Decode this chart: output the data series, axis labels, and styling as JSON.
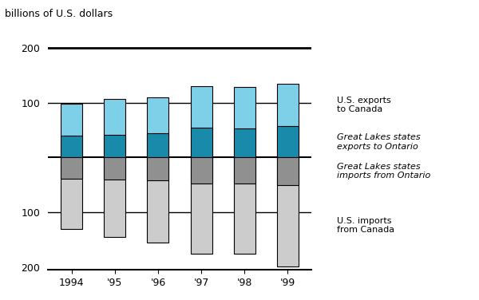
{
  "years": [
    "1994",
    "'95",
    "'96",
    "'97",
    "'98",
    "'99"
  ],
  "us_exports_to_canada": [
    98,
    107,
    110,
    130,
    128,
    135
  ],
  "gl_exports_to_ontario": [
    40,
    42,
    44,
    55,
    53,
    57
  ],
  "us_imports_from_canada": [
    130,
    145,
    155,
    175,
    175,
    198
  ],
  "gl_imports_from_ontario": [
    38,
    40,
    42,
    48,
    48,
    50
  ],
  "color_light_blue": "#7ECFE8",
  "color_dark_teal": "#1A8AAA",
  "color_light_gray": "#CCCCCC",
  "color_dark_gray": "#909090",
  "color_black": "#000000",
  "bar_width": 0.5,
  "ylabel": "billions of U.S. dollars",
  "background_color": "#ffffff",
  "annotation_us_exports": "U.S. exports\nto Canada",
  "annotation_gl_exports": "Great Lakes states\nexports to Ontario",
  "annotation_gl_imports": "Great Lakes states\nimports from Ontario",
  "annotation_us_imports": "U.S. imports\nfrom Canada"
}
